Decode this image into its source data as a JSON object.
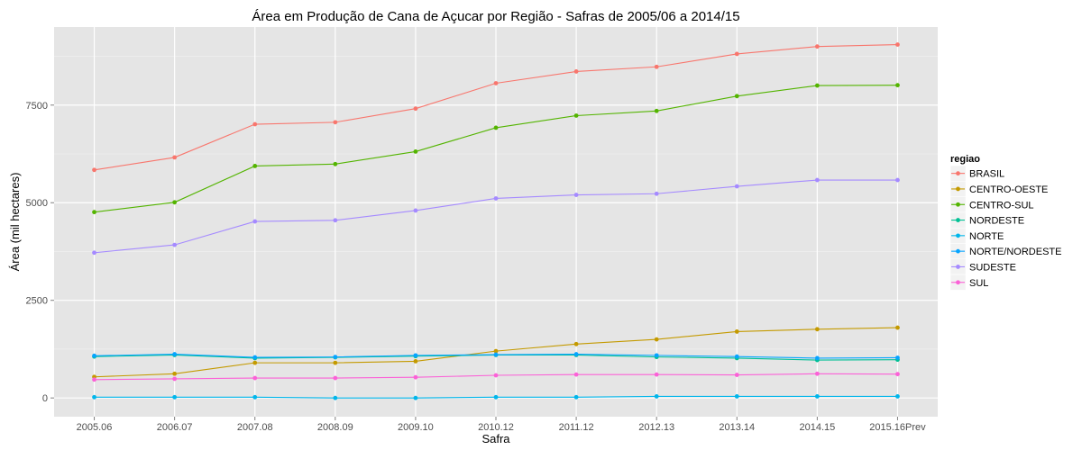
{
  "chart_data": {
    "type": "line",
    "title": "Área em Produção de Cana de Açucar por Região - Safras de 2005/06 a 2014/15",
    "xlabel": "Safra",
    "ylabel": "Área (mil hectares)",
    "categories": [
      "2005.06",
      "2006.07",
      "2007.08",
      "2008.09",
      "2009.10",
      "2010.12",
      "2011.12",
      "2012.13",
      "2013.14",
      "2014.15",
      "2015.16Prev"
    ],
    "ylim": [
      -480,
      9500
    ],
    "yticks": [
      0,
      2500,
      5000,
      7500
    ],
    "grid": true,
    "legend_title": "regiao",
    "legend_position": "right",
    "series": [
      {
        "name": "BRASIL",
        "color": "#F8766D",
        "values": [
          5840,
          6160,
          7010,
          7060,
          7410,
          8060,
          8360,
          8480,
          8810,
          9000,
          9050
        ]
      },
      {
        "name": "CENTRO-OESTE",
        "color": "#C49A00",
        "values": [
          540,
          620,
          900,
          900,
          940,
          1200,
          1380,
          1500,
          1700,
          1760,
          1800
        ]
      },
      {
        "name": "CENTRO-SUL",
        "color": "#53B400",
        "values": [
          4760,
          5010,
          5940,
          5990,
          6310,
          6920,
          7230,
          7350,
          7730,
          8000,
          8010
        ]
      },
      {
        "name": "NORDESTE",
        "color": "#00C094",
        "values": [
          1060,
          1100,
          1020,
          1040,
          1070,
          1100,
          1100,
          1050,
          1020,
          970,
          980
        ]
      },
      {
        "name": "NORTE",
        "color": "#00B6EB",
        "values": [
          20,
          20,
          20,
          0,
          0,
          20,
          20,
          40,
          40,
          40,
          40
        ]
      },
      {
        "name": "NORTE/NORDESTE",
        "color": "#06A4FF",
        "values": [
          1080,
          1120,
          1040,
          1050,
          1090,
          1110,
          1120,
          1090,
          1060,
          1020,
          1030
        ]
      },
      {
        "name": "SUDESTE",
        "color": "#A58AFF",
        "values": [
          3720,
          3920,
          4520,
          4550,
          4800,
          5110,
          5200,
          5230,
          5420,
          5580,
          5580
        ]
      },
      {
        "name": "SUL",
        "color": "#FB61D7",
        "values": [
          470,
          490,
          510,
          510,
          530,
          580,
          600,
          600,
          590,
          620,
          610
        ]
      }
    ]
  }
}
